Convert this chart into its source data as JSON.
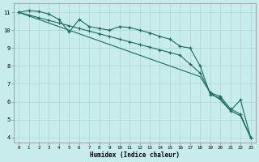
{
  "xlabel": "Humidex (Indice chaleur)",
  "background_color": "#c8ecec",
  "grid_color": "#b0d8d8",
  "line_color": "#1a6b5a",
  "xlim": [
    -0.5,
    23.5
  ],
  "ylim": [
    3.7,
    11.5
  ],
  "yticks": [
    4,
    5,
    6,
    7,
    8,
    9,
    10,
    11
  ],
  "xticks": [
    0,
    1,
    2,
    3,
    4,
    5,
    6,
    7,
    8,
    9,
    10,
    11,
    12,
    13,
    14,
    15,
    16,
    17,
    18,
    19,
    20,
    21,
    22,
    23
  ],
  "series1_x": [
    0,
    1,
    2,
    3,
    4,
    5,
    6,
    7,
    8,
    9,
    10,
    11,
    12,
    13,
    14,
    15,
    16,
    17,
    18,
    19,
    20,
    21,
    22,
    23
  ],
  "series1_y": [
    11.0,
    11.1,
    11.05,
    10.9,
    10.6,
    9.9,
    10.6,
    10.2,
    10.1,
    10.0,
    10.2,
    10.15,
    10.0,
    9.85,
    9.65,
    9.5,
    9.1,
    9.0,
    8.0,
    6.4,
    6.2,
    5.5,
    6.1,
    4.0
  ],
  "series2_x": [
    0,
    1,
    2,
    3,
    4,
    5,
    6,
    7,
    8,
    9,
    10,
    11,
    12,
    13,
    14,
    15,
    16,
    17,
    18,
    19,
    20,
    21,
    22,
    23
  ],
  "series2_y": [
    11.0,
    10.85,
    10.7,
    10.55,
    10.4,
    10.25,
    10.1,
    9.95,
    9.8,
    9.65,
    9.5,
    9.35,
    9.2,
    9.05,
    8.9,
    8.75,
    8.6,
    8.1,
    7.6,
    6.5,
    6.3,
    5.6,
    5.3,
    4.0
  ],
  "series3_x": [
    0,
    1,
    2,
    3,
    4,
    5,
    6,
    7,
    8,
    9,
    10,
    11,
    12,
    13,
    14,
    15,
    16,
    17,
    18,
    19,
    20,
    21,
    22,
    23
  ],
  "series3_y": [
    11.0,
    10.8,
    10.6,
    10.4,
    10.2,
    10.0,
    9.8,
    9.6,
    9.4,
    9.2,
    9.0,
    8.8,
    8.6,
    8.4,
    8.2,
    8.0,
    7.8,
    7.6,
    7.4,
    6.5,
    6.1,
    5.5,
    5.2,
    4.0
  ]
}
